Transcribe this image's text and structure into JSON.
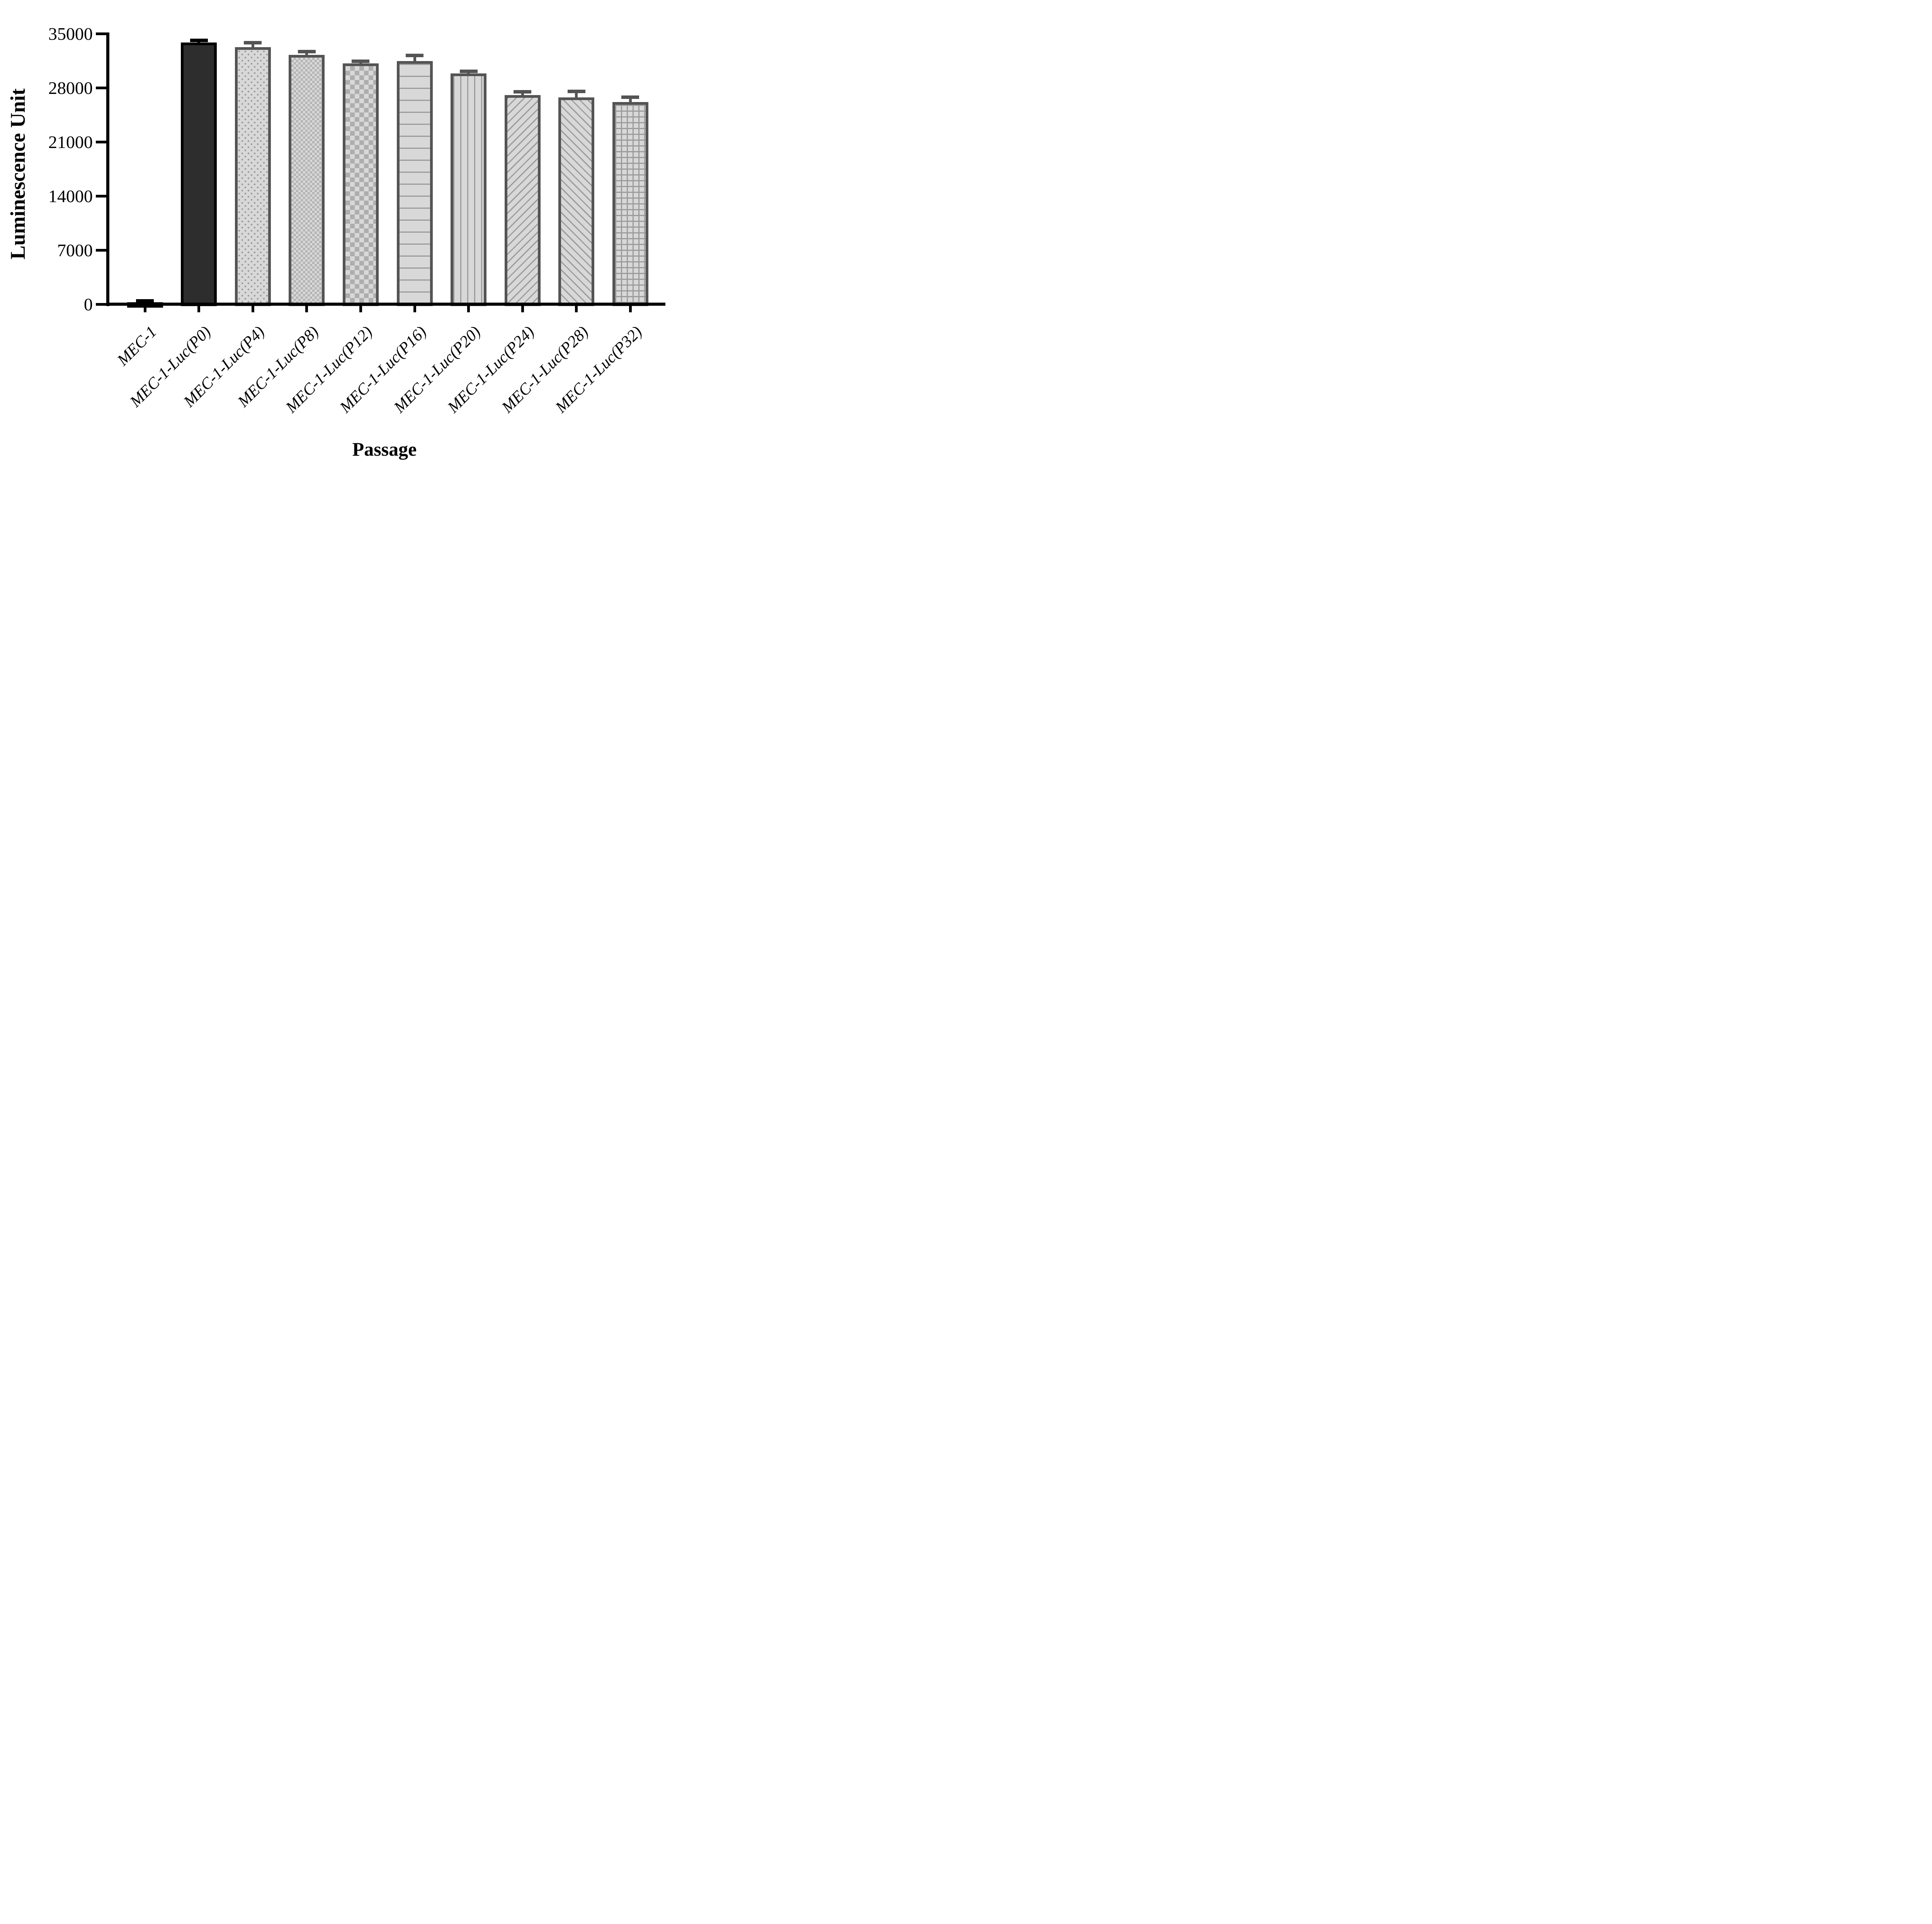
{
  "chart_data": {
    "type": "bar",
    "title": "",
    "xlabel": "Passage",
    "ylabel": "Luminescence Unit",
    "ylim": [
      0,
      35000
    ],
    "yticks": [
      0,
      7000,
      14000,
      21000,
      28000,
      35000
    ],
    "grid": false,
    "legend": null,
    "categories": [
      "MEC-1",
      "MEC-1-Luc(P0)",
      "MEC-1-Luc(P4)",
      "MEC-1-Luc(P8)",
      "MEC-1-Luc(P12)",
      "MEC-1-Luc(P16)",
      "MEC-1-Luc(P20)",
      "MEC-1-Luc(P24)",
      "MEC-1-Luc(P28)",
      "MEC-1-Luc(P32)"
    ],
    "series": [
      {
        "name": "Luminescence Unit",
        "values": [
          300,
          33900,
          33300,
          32300,
          31200,
          31500,
          29900,
          27100,
          26800,
          26200
        ],
        "errors_plus": [
          150,
          250,
          550,
          400,
          250,
          700,
          230,
          420,
          750,
          600
        ]
      }
    ],
    "bar_styles": [
      {
        "pattern": "solid-black",
        "frame": "#000000",
        "fill": "#000000"
      },
      {
        "pattern": "solid-dark",
        "frame": "#000000",
        "fill": "#2d2d2d"
      },
      {
        "pattern": "dots",
        "frame": "#545454",
        "fill": "#d8d8d8"
      },
      {
        "pattern": "checker-small",
        "frame": "#545454",
        "fill": "#d8d8d8"
      },
      {
        "pattern": "checker-large",
        "frame": "#545454",
        "fill": "#d8d8d8"
      },
      {
        "pattern": "hlines",
        "frame": "#545454",
        "fill": "#d8d8d8"
      },
      {
        "pattern": "vlines",
        "frame": "#545454",
        "fill": "#d8d8d8"
      },
      {
        "pattern": "diag-up",
        "frame": "#545454",
        "fill": "#d8d8d8"
      },
      {
        "pattern": "diag-down",
        "frame": "#545454",
        "fill": "#d8d8d8"
      },
      {
        "pattern": "grid",
        "frame": "#545454",
        "fill": "#d8d8d8"
      }
    ],
    "colors": {
      "axis": "#000000",
      "text": "#000000",
      "pattern_gray": "#9b9b9b",
      "background": "#ffffff"
    }
  }
}
